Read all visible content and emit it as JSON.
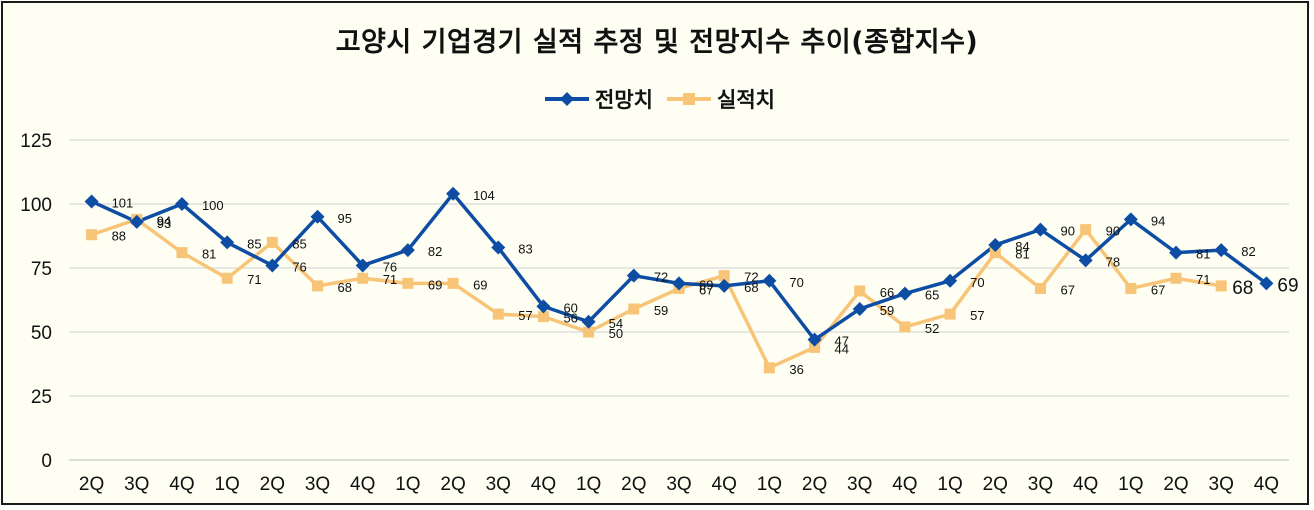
{
  "chart_data": {
    "type": "line",
    "title": "고양시 기업경기 실적 추정 및 전망지수 추이(종합지수)",
    "categories": [
      "2Q",
      "3Q",
      "4Q",
      "1Q",
      "2Q",
      "3Q",
      "4Q",
      "1Q",
      "2Q",
      "3Q",
      "4Q",
      "1Q",
      "2Q",
      "3Q",
      "4Q",
      "1Q",
      "2Q",
      "3Q",
      "4Q",
      "1Q",
      "2Q",
      "3Q",
      "4Q",
      "1Q",
      "2Q",
      "3Q",
      "4Q"
    ],
    "ylim": [
      0,
      125
    ],
    "yticks": [
      "0",
      "25",
      "50",
      "75",
      "100",
      "125"
    ],
    "grid": true,
    "legend": "top",
    "series": [
      {
        "name": "전망치",
        "color": "#0E4DA4",
        "marker": "diamond",
        "values": [
          101,
          93,
          100,
          85,
          76,
          95,
          76,
          82,
          104,
          83,
          60,
          54,
          72,
          69,
          68,
          70,
          47,
          59,
          65,
          70,
          84,
          90,
          78,
          94,
          81,
          82,
          69
        ]
      },
      {
        "name": "실적치",
        "color": "#F8C477",
        "marker": "square",
        "values": [
          88,
          94,
          81,
          71,
          85,
          68,
          71,
          69,
          69,
          57,
          56,
          50,
          59,
          67,
          72,
          36,
          44,
          66,
          52,
          57,
          81,
          67,
          90,
          67,
          71,
          68,
          null
        ]
      }
    ]
  }
}
